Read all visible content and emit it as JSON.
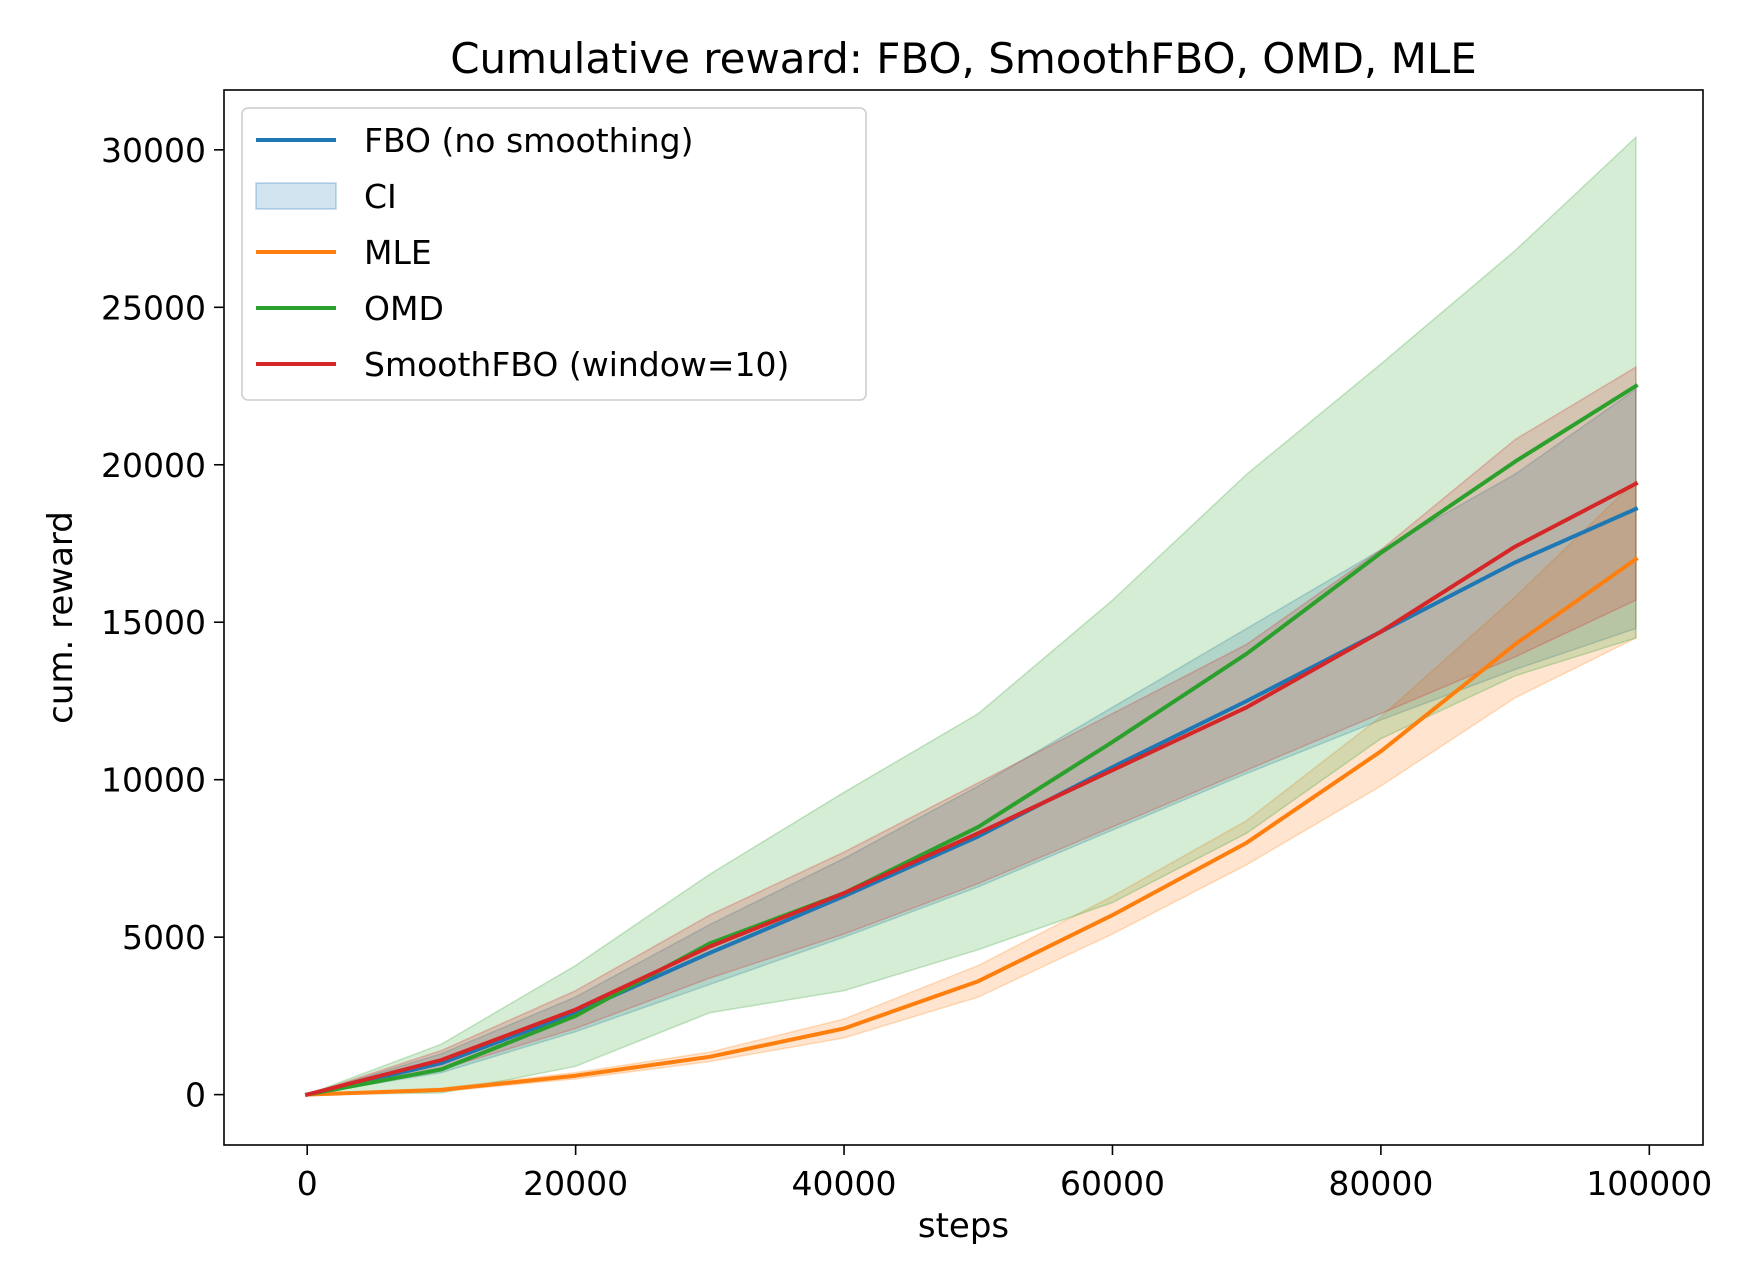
{
  "chart_data": {
    "type": "line",
    "title": "Cumulative reward: FBO, SmoothFBO, OMD, MLE",
    "xlabel": "steps",
    "ylabel": "cum. reward",
    "xlim": [
      -6200,
      104000
    ],
    "ylim": [
      -1600,
      31900
    ],
    "xticks": [
      0,
      20000,
      40000,
      60000,
      80000,
      100000
    ],
    "xtick_labels": [
      "0",
      "20000",
      "40000",
      "60000",
      "80000",
      "100000"
    ],
    "yticks": [
      0,
      5000,
      10000,
      15000,
      20000,
      25000,
      30000
    ],
    "ytick_labels": [
      "0",
      "5000",
      "10000",
      "15000",
      "20000",
      "25000",
      "30000"
    ],
    "grid": false,
    "legend_position": "top-left",
    "legend": [
      "FBO (no smoothing)",
      "CI",
      "MLE",
      "OMD",
      "SmoothFBO (window=10)"
    ],
    "series": [
      {
        "name": "FBO (no smoothing)",
        "color": "#1f77b4",
        "x": [
          0,
          10000,
          20000,
          30000,
          40000,
          50000,
          60000,
          70000,
          80000,
          90000,
          99000
        ],
        "y": [
          0,
          1000,
          2600,
          4500,
          6300,
          8200,
          10400,
          12500,
          14700,
          16900,
          18600
        ],
        "ci_lower": [
          0,
          700,
          2000,
          3500,
          5000,
          6600,
          8400,
          10200,
          11900,
          13500,
          14800
        ],
        "ci_upper": [
          0,
          1300,
          3100,
          5400,
          7500,
          9800,
          12300,
          14800,
          17300,
          19700,
          22400
        ]
      },
      {
        "name": "MLE",
        "color": "#ff7f0e",
        "x": [
          0,
          10000,
          20000,
          30000,
          40000,
          50000,
          60000,
          70000,
          80000,
          90000,
          99000
        ],
        "y": [
          0,
          150,
          600,
          1200,
          2100,
          3600,
          5700,
          8000,
          10900,
          14300,
          17000
        ],
        "ci_lower": [
          0,
          100,
          500,
          1050,
          1800,
          3100,
          5100,
          7300,
          9800,
          12600,
          14500
        ],
        "ci_upper": [
          0,
          200,
          700,
          1350,
          2400,
          4100,
          6300,
          8700,
          12000,
          15800,
          19500
        ]
      },
      {
        "name": "OMD",
        "color": "#2ca02c",
        "x": [
          0,
          10000,
          20000,
          30000,
          40000,
          50000,
          60000,
          70000,
          80000,
          90000,
          99000
        ],
        "y": [
          0,
          800,
          2500,
          4800,
          6400,
          8500,
          11200,
          14000,
          17200,
          20100,
          22500
        ],
        "ci_lower": [
          0,
          50,
          900,
          2600,
          3300,
          4600,
          6100,
          8300,
          11300,
          13300,
          14500
        ],
        "ci_upper": [
          0,
          1600,
          4100,
          7000,
          9600,
          12100,
          15700,
          19700,
          23200,
          26800,
          30400
        ]
      },
      {
        "name": "SmoothFBO (window=10)",
        "color": "#d62728",
        "x": [
          0,
          10000,
          20000,
          30000,
          40000,
          50000,
          60000,
          70000,
          80000,
          90000,
          99000
        ],
        "y": [
          0,
          1100,
          2700,
          4700,
          6400,
          8300,
          10300,
          12300,
          14700,
          17400,
          19400
        ],
        "ci_lower": [
          0,
          800,
          2100,
          3700,
          5100,
          6700,
          8500,
          10300,
          12100,
          13900,
          15700
        ],
        "ci_upper": [
          0,
          1400,
          3300,
          5700,
          7700,
          9900,
          12100,
          14300,
          17300,
          20800,
          23100
        ]
      }
    ]
  }
}
